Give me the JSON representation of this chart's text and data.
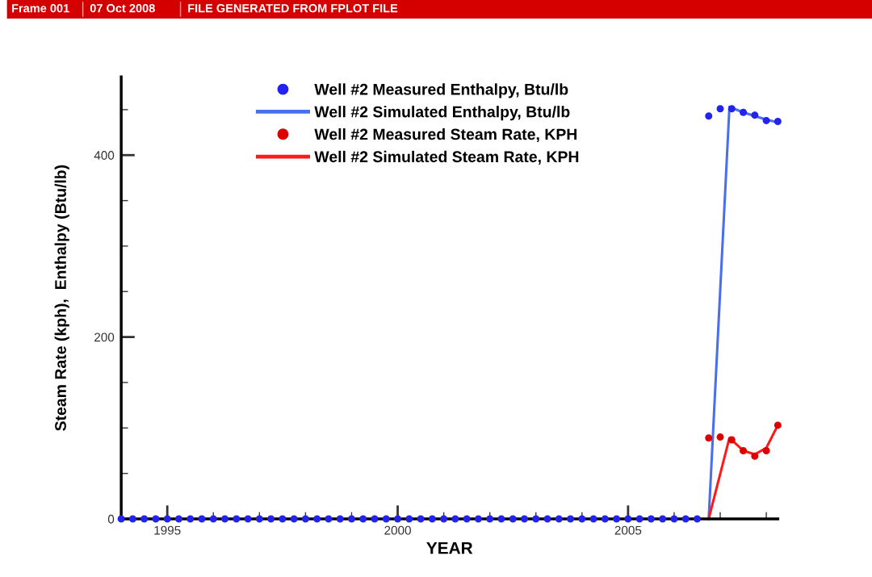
{
  "chart_data": {
    "type": "scatter",
    "annotations": [
      "Frame 001",
      "07 Oct 2008",
      "FILE GENERATED FROM FPLOT FILE"
    ],
    "xlabel": "YEAR",
    "ylabel": "Steam Rate (kph),  Enthalpy (Btu/lb)",
    "xlim": [
      1994,
      2008.25
    ],
    "ylim": [
      0,
      486
    ],
    "xticks": [
      {
        "value": 1994,
        "label": null
      },
      1995,
      {
        "value": 1996,
        "label": null
      },
      {
        "value": 1997,
        "label": null
      },
      {
        "value": 1998,
        "label": null
      },
      {
        "value": 1999,
        "label": null
      },
      2000,
      {
        "value": 2001,
        "label": null
      },
      {
        "value": 2002,
        "label": null
      },
      {
        "value": 2003,
        "label": null
      },
      {
        "value": 2004,
        "label": null
      },
      2005,
      {
        "value": 2006,
        "label": null
      },
      {
        "value": 2007,
        "label": null
      },
      {
        "value": 2008,
        "label": null
      }
    ],
    "yticks": [
      0,
      {
        "value": 50,
        "label": null
      },
      {
        "value": 100,
        "label": null
      },
      {
        "value": 150,
        "label": null
      },
      200,
      {
        "value": 250,
        "label": null
      },
      {
        "value": 300,
        "label": null
      },
      {
        "value": 350,
        "label": null
      },
      400,
      {
        "value": 450,
        "label": null
      }
    ],
    "legend": "top",
    "grid": false,
    "series": [
      {
        "name": "Well #2 Measured Enthalpy, Btu/lb",
        "marker": "circle",
        "color": "#2323ee",
        "x": [
          1994,
          1994.25,
          1994.5,
          1994.75,
          1995,
          1995.25,
          1995.5,
          1995.75,
          1996,
          1996.25,
          1996.5,
          1996.75,
          1997,
          1997.25,
          1997.5,
          1997.75,
          1998,
          1998.25,
          1998.5,
          1998.75,
          1999,
          1999.25,
          1999.5,
          1999.75,
          2000,
          2000.25,
          2000.5,
          2000.75,
          2001,
          2001.25,
          2001.5,
          2001.75,
          2002,
          2002.25,
          2002.5,
          2002.75,
          2003,
          2003.25,
          2003.5,
          2003.75,
          2004,
          2004.25,
          2004.5,
          2004.75,
          2005,
          2005.25,
          2005.5,
          2005.75,
          2006,
          2006.25,
          2006.5,
          2006.75,
          2007,
          2007.25,
          2007.5,
          2007.75,
          2008,
          2008.25
        ],
        "values": [
          0,
          0,
          0,
          0,
          0,
          0,
          0,
          0,
          0,
          0,
          0,
          0,
          0,
          0,
          0,
          0,
          0,
          0,
          0,
          0,
          0,
          0,
          0,
          0,
          0,
          0,
          0,
          0,
          0,
          0,
          0,
          0,
          0,
          0,
          0,
          0,
          0,
          0,
          0,
          0,
          0,
          0,
          0,
          0,
          0,
          0,
          0,
          0,
          0,
          0,
          0,
          443,
          451,
          451,
          447,
          444,
          438,
          437
        ]
      },
      {
        "name": "Well #2 Simulated Enthalpy, Btu/lb",
        "type": "line",
        "marker": "none",
        "line_style": "solid",
        "color": "#4a6ef0",
        "x": [
          2006.75,
          2007.2,
          2007.5,
          2007.75,
          2008,
          2008.25
        ],
        "values": [
          0,
          453,
          447,
          443,
          439,
          436
        ]
      },
      {
        "name": "Well #2 Measured Steam Rate, KPH",
        "marker": "circle",
        "color": "#dd0000",
        "x": [
          2006.75,
          2007,
          2007.25,
          2007.5,
          2007.75,
          2008,
          2008.25
        ],
        "values": [
          89,
          90,
          87,
          75,
          69,
          75,
          103
        ]
      },
      {
        "name": "Well #2 Simulated Steam Rate, KPH",
        "type": "line",
        "marker": "none",
        "line_style": "solid",
        "color": "#ff1a1a",
        "x": [
          2006.75,
          2007.2,
          2007.5,
          2007.75,
          2008,
          2008.25
        ],
        "values": [
          0,
          89,
          75,
          71,
          78,
          103
        ]
      }
    ]
  }
}
